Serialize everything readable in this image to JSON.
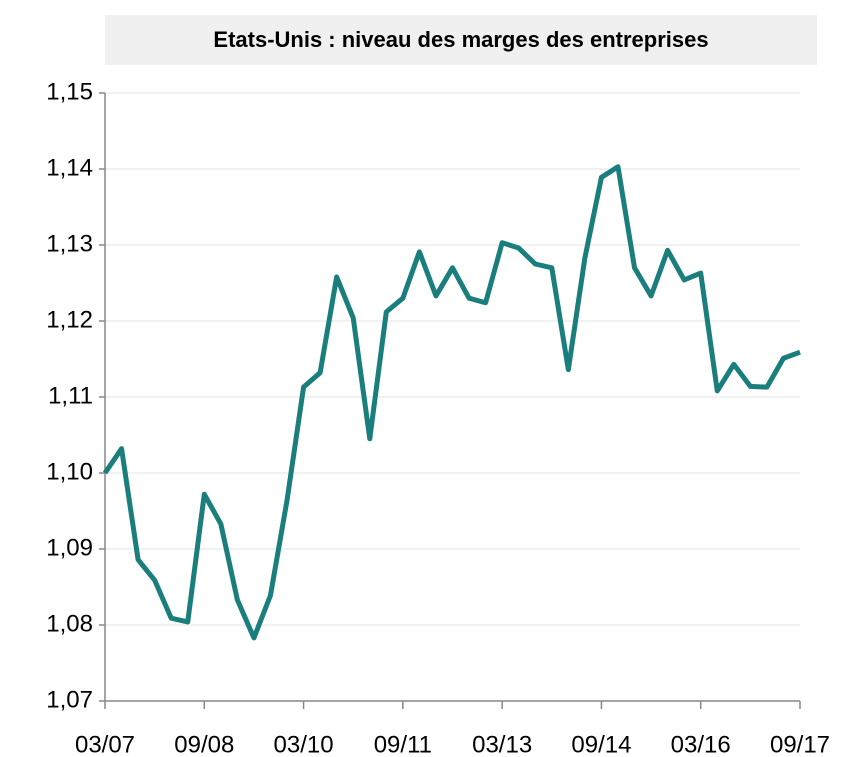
{
  "chart_data": {
    "type": "line",
    "title": "Etats-Unis : niveau des marges des entreprises",
    "categories": [
      "03/07",
      null,
      null,
      null,
      null,
      null,
      "09/08",
      null,
      null,
      null,
      null,
      null,
      "03/10",
      null,
      null,
      null,
      null,
      null,
      "09/11",
      null,
      null,
      null,
      null,
      null,
      "03/13",
      null,
      null,
      null,
      null,
      null,
      "09/14",
      null,
      null,
      null,
      null,
      null,
      "03/16",
      null,
      null,
      null,
      null,
      null,
      "09/17"
    ],
    "series": [
      {
        "color": "#1a7f7c",
        "values": [
          1.1,
          1.1032,
          1.0886,
          1.0859,
          1.0809,
          1.0804,
          1.0972,
          1.0933,
          1.0833,
          1.0783,
          1.0839,
          1.0964,
          1.1113,
          1.1132,
          1.1258,
          1.1204,
          1.1045,
          1.1212,
          1.123,
          1.1291,
          1.1233,
          1.127,
          1.123,
          1.1224,
          1.1303,
          1.1296,
          1.1275,
          1.127,
          1.1136,
          1.1283,
          1.1389,
          1.1403,
          1.127,
          1.1233,
          1.1293,
          1.1254,
          1.1263,
          1.1108,
          1.1143,
          1.1114,
          1.1113,
          1.1151,
          1.1159
        ]
      }
    ],
    "ylim": [
      1.07,
      1.15
    ],
    "yticks": [
      {
        "value": 1.07,
        "label": "1,07"
      },
      {
        "value": 1.08,
        "label": "1,08"
      },
      {
        "value": 1.09,
        "label": "1,09"
      },
      {
        "value": 1.1,
        "label": "1,10"
      },
      {
        "value": 1.11,
        "label": "1,11"
      },
      {
        "value": 1.12,
        "label": "1,12"
      },
      {
        "value": 1.13,
        "label": "1,13"
      },
      {
        "value": 1.14,
        "label": "1,14"
      },
      {
        "value": 1.15,
        "label": "1,15"
      }
    ],
    "grid": true
  }
}
